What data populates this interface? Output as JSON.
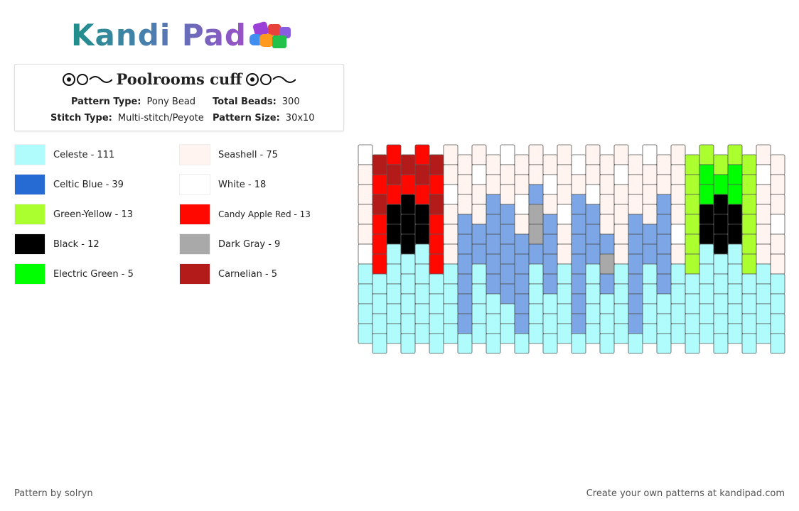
{
  "header": {
    "logo": "Kandi Pad"
  },
  "info": {
    "title": "Poolrooms cuff",
    "fields": [
      {
        "label": "Pattern Type:",
        "value": "Pony Bead"
      },
      {
        "label": "Total Beads:",
        "value": "300"
      },
      {
        "label": "Stitch Type:",
        "value": "Multi-stitch/Peyote"
      },
      {
        "label": "Pattern Size:",
        "value": "30x10"
      }
    ]
  },
  "legend": [
    {
      "label": "Celeste - 111",
      "color": "#b0fcfc"
    },
    {
      "label": "Celtic Blue - 39",
      "color": "#256bd3"
    },
    {
      "label": "Green-Yellow - 13",
      "color": "#acff2f"
    },
    {
      "label": "Black - 12",
      "color": "#000000"
    },
    {
      "label": "Electric Green - 5",
      "color": "#00ff00"
    },
    {
      "label": "Seashell - 75",
      "color": "#fff4ef"
    },
    {
      "label": "White - 18",
      "color": "#ffffff"
    },
    {
      "label": "Candy Apple Red - 13",
      "color": "#ff0800"
    },
    {
      "label": "Dark Gray - 9",
      "color": "#a9a9a9"
    },
    {
      "label": "Carnelian - 5",
      "color": "#b31b1b"
    }
  ],
  "footer": {
    "left": "Pattern by solryn",
    "right": "Create your own patterns at kandipad.com"
  }
}
